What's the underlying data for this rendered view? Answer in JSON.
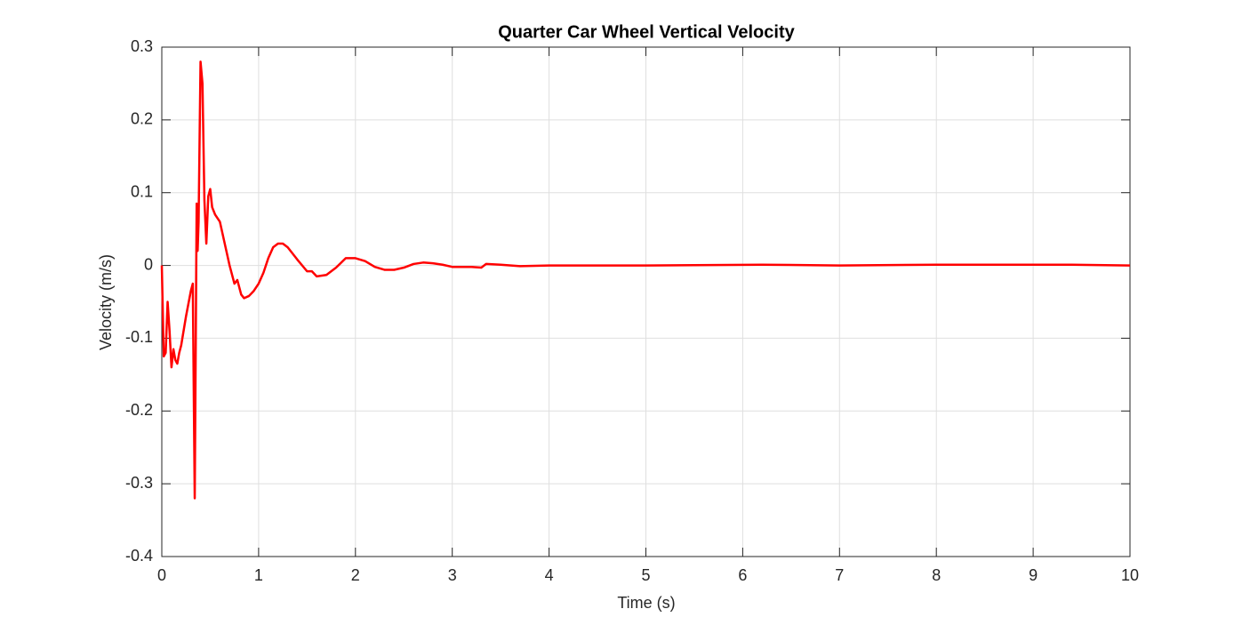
{
  "chart_data": {
    "type": "line",
    "title": "Quarter Car Wheel Vertical Velocity",
    "x_label": "Time (s)",
    "y_label": "Velocity (m/s)",
    "x": [
      0,
      0.02,
      0.04,
      0.06,
      0.08,
      0.1,
      0.12,
      0.14,
      0.16,
      0.18,
      0.2,
      0.25,
      0.3,
      0.32,
      0.34,
      0.36,
      0.37,
      0.38,
      0.4,
      0.42,
      0.44,
      0.46,
      0.48,
      0.5,
      0.52,
      0.55,
      0.6,
      0.65,
      0.7,
      0.75,
      0.78,
      0.82,
      0.85,
      0.9,
      0.95,
      1.0,
      1.05,
      1.1,
      1.15,
      1.2,
      1.25,
      1.3,
      1.4,
      1.5,
      1.55,
      1.6,
      1.7,
      1.8,
      1.9,
      2.0,
      2.1,
      2.2,
      2.3,
      2.4,
      2.5,
      2.6,
      2.7,
      2.8,
      2.9,
      3.0,
      3.2,
      3.3,
      3.35,
      3.5,
      3.7,
      4.0,
      5.0,
      6.2,
      7.0,
      8.0,
      9.4,
      10
    ],
    "series": [
      {
        "name": "Velocity",
        "color": "#ff0000",
        "values": [
          0,
          -0.125,
          -0.12,
          -0.05,
          -0.09,
          -0.14,
          -0.115,
          -0.13,
          -0.135,
          -0.12,
          -0.11,
          -0.07,
          -0.035,
          -0.025,
          -0.32,
          0.085,
          0.02,
          0.06,
          0.28,
          0.25,
          0.09,
          0.03,
          0.095,
          0.105,
          0.08,
          0.07,
          0.06,
          0.03,
          0.0,
          -0.025,
          -0.02,
          -0.04,
          -0.045,
          -0.042,
          -0.035,
          -0.025,
          -0.01,
          0.01,
          0.025,
          0.03,
          0.03,
          0.025,
          0.008,
          -0.008,
          -0.008,
          -0.015,
          -0.013,
          -0.003,
          0.01,
          0.01,
          0.006,
          -0.002,
          -0.006,
          -0.006,
          -0.003,
          0.002,
          0.004,
          0.003,
          0.001,
          -0.002,
          -0.002,
          -0.003,
          0.002,
          0.001,
          -0.001,
          0,
          0,
          0.001,
          0,
          0.001,
          0.001,
          0
        ]
      }
    ],
    "xlim": [
      0,
      10
    ],
    "xticks": [
      0,
      1,
      2,
      3,
      4,
      5,
      6,
      7,
      8,
      9,
      10
    ],
    "ylim": [
      -0.4,
      0.3
    ],
    "yticks": [
      -0.4,
      -0.3,
      -0.2,
      -0.1,
      0,
      0.1,
      0.2,
      0.3
    ],
    "grid": true
  }
}
